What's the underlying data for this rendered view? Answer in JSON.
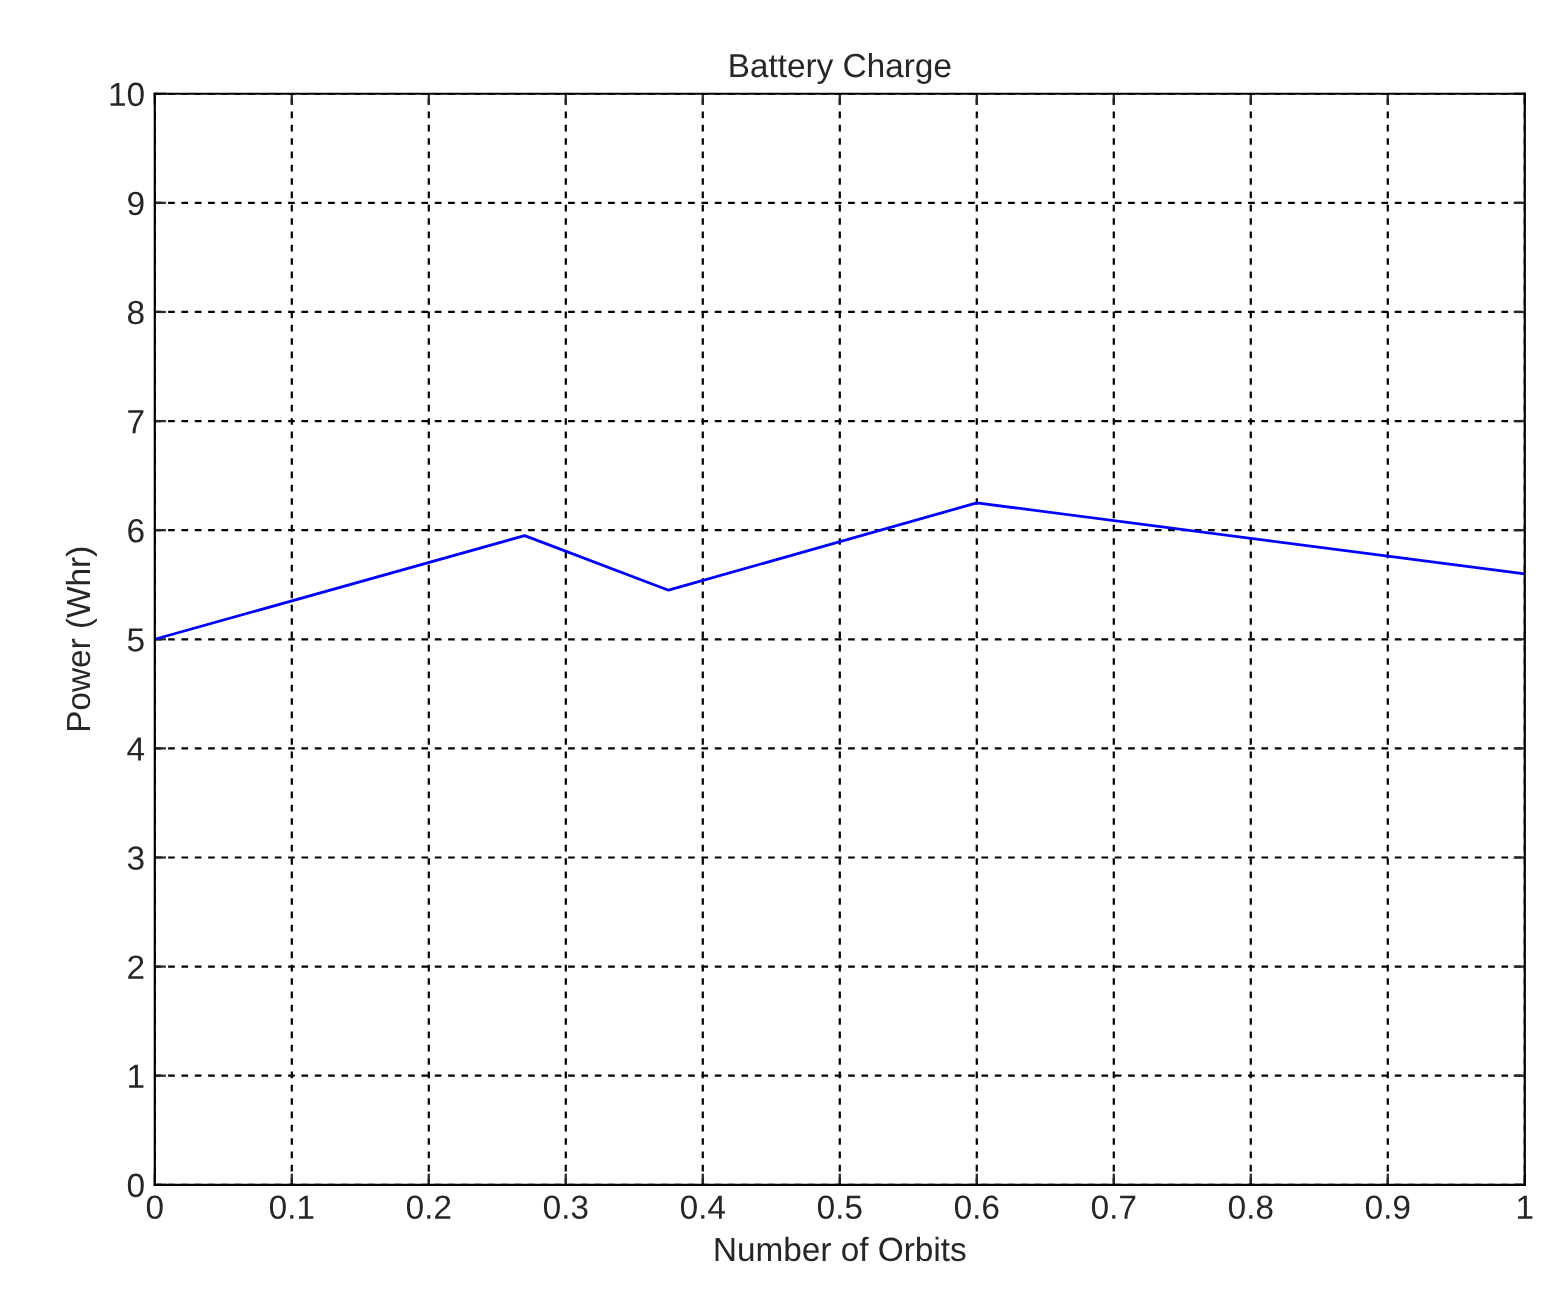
{
  "chart_data": {
    "type": "line",
    "title": "Battery Charge",
    "xlabel": "Number of Orbits",
    "ylabel": "Power (Whr)",
    "series": [
      {
        "color": "#0000ff",
        "x": [
          0,
          0.27,
          0.375,
          0.6,
          1.0
        ],
        "values": [
          5.0,
          5.95,
          5.45,
          6.25,
          5.6
        ]
      }
    ],
    "xlim": [
      0,
      1
    ],
    "xticks": [
      0,
      0.1,
      0.2,
      0.3,
      0.4,
      0.5,
      0.6,
      0.7,
      0.8,
      0.9,
      1
    ],
    "ylim": [
      0,
      10
    ],
    "yticks": [
      0,
      1,
      2,
      3,
      4,
      5,
      6,
      7,
      8,
      9,
      10
    ],
    "grid": true,
    "line_style": "solid",
    "legend": false
  }
}
